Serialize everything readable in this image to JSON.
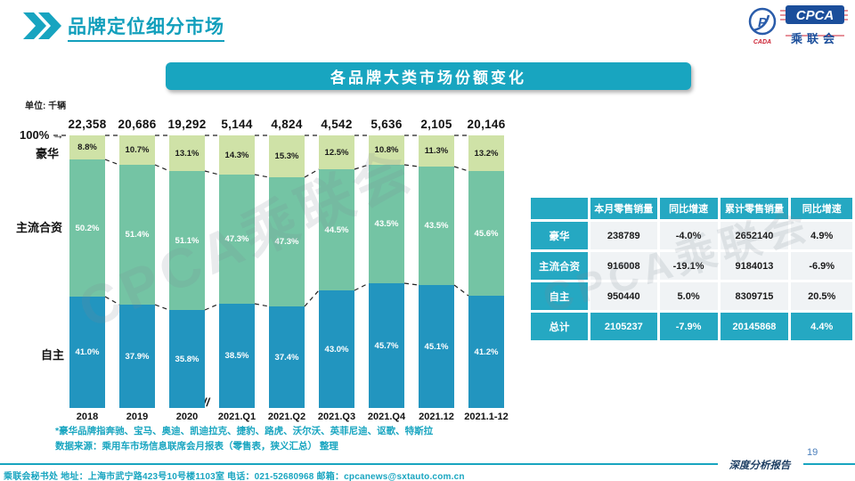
{
  "header": {
    "title": "品牌定位细分市场",
    "logo": {
      "acronym": "CPCA",
      "cn_name": "乘联会",
      "emblem_text": "CADA"
    }
  },
  "banner": {
    "title": "各品牌大类市场份额变化"
  },
  "unit_label": "单位: 千辆",
  "chart_data": {
    "type": "bar",
    "subtype": "100%-stacked-bar",
    "categories": [
      "2018",
      "2019",
      "2020",
      "2021.Q1",
      "2021.Q2",
      "2021.Q3",
      "2021.Q4",
      "2021.12",
      "2021.1-12"
    ],
    "totals": [
      "22,358",
      "20,686",
      "19,292",
      "5,144",
      "4,824",
      "4,542",
      "5,636",
      "2,105",
      "20,146"
    ],
    "series": [
      {
        "name": "豪华",
        "values": [
          8.8,
          10.7,
          13.1,
          14.3,
          15.3,
          12.5,
          10.8,
          11.3,
          13.2
        ],
        "color": "#cfe2a7",
        "label_color": "#1a1a1a"
      },
      {
        "name": "主流合资",
        "values": [
          50.2,
          51.4,
          51.1,
          47.3,
          47.3,
          44.5,
          43.5,
          43.5,
          45.6
        ],
        "color": "#74c4a4",
        "label_color": "#ffffff"
      },
      {
        "name": "自主",
        "values": [
          41.0,
          37.9,
          35.8,
          38.5,
          37.4,
          43.0,
          45.7,
          45.1,
          41.2
        ],
        "color": "#2295bf",
        "label_color": "#ffffff"
      }
    ],
    "axis_label_100": "100%",
    "axis_arrow": "→",
    "axis_break": "//",
    "ylim": [
      0,
      100
    ],
    "legend_position": "left-of-bars",
    "grid": false
  },
  "table": {
    "headers": [
      "",
      "本月零售销量",
      "同比增速",
      "累计零售销量",
      "同比增速"
    ],
    "rows": [
      {
        "label": "豪华",
        "cells": [
          "238789",
          "-4.0%",
          "2652140",
          "4.9%"
        ],
        "is_total": false
      },
      {
        "label": "主流合资",
        "cells": [
          "916008",
          "-19.1%",
          "9184013",
          "-6.9%"
        ],
        "is_total": false
      },
      {
        "label": "自主",
        "cells": [
          "950440",
          "5.0%",
          "8309715",
          "20.5%"
        ],
        "is_total": false
      },
      {
        "label": "总计",
        "cells": [
          "2105237",
          "-7.9%",
          "20145868",
          "4.4%"
        ],
        "is_total": true
      }
    ]
  },
  "footnotes": {
    "line1": "*豪华品牌指奔驰、宝马、奥迪、凯迪拉克、捷豹、路虎、沃尔沃、英菲尼迪、讴歌、特斯拉",
    "line2": "数据来源：乘用车市场信息联席会月报表（零售表，狭义汇总）   整理"
  },
  "footer": {
    "left_text": "乘联会秘书处   地址：上海市武宁路423号10号楼1103室   电话：021-52680968    邮箱：cpcanews@sxtauto.com.cn",
    "report_label": "深度分析报告",
    "page_number": "19"
  },
  "watermark": "CPCA乘联会",
  "colors": {
    "accent_teal": "#18a5c0",
    "bar_luxury": "#cfe2a7",
    "bar_joint_venture": "#74c4a4",
    "bar_domestic": "#2295bf",
    "table_teal": "#25a8c2",
    "footer_navy": "#1d3e63",
    "page_number_blue": "#4a7ebb",
    "logo_blue": "#1b4e9b",
    "logo_red": "#cc2233"
  }
}
